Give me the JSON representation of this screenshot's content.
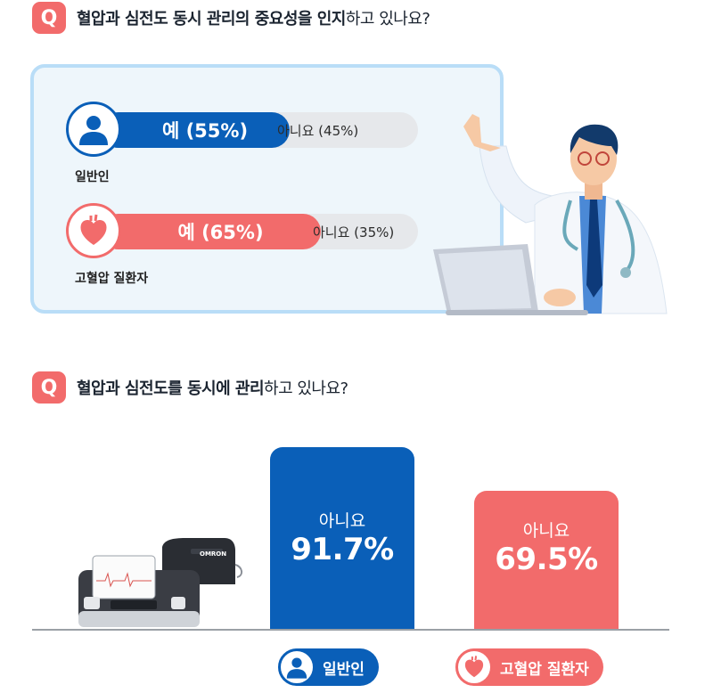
{
  "q1": {
    "badge": "Q",
    "text_bold": "혈압과 심전도 동시 관리의 중요성을 인지",
    "text_normal": "하고 있나요?",
    "groups": [
      {
        "label": "일반인",
        "yes_label": "예 (55%)",
        "no_label": "아니요 (45%)",
        "yes": 55,
        "no": 45,
        "color": "#0a5fb8",
        "icon": "person-icon"
      },
      {
        "label": "고혈압 질환자",
        "yes_label": "예 (65%)",
        "no_label": "아니요 (35%)",
        "yes": 65,
        "no": 35,
        "color": "#f26b6b",
        "icon": "heart-icon"
      }
    ]
  },
  "q2": {
    "badge": "Q",
    "text_bold": "혈압과 심전도를 동시에 관리",
    "text_normal": "하고 있나요?"
  },
  "device": {
    "brand": "OMRON"
  },
  "chart_data": [
    {
      "type": "bar",
      "orientation": "horizontal-stacked",
      "categories": [
        "일반인",
        "고혈압 질환자"
      ],
      "series": [
        {
          "name": "예",
          "values": [
            55,
            65
          ]
        },
        {
          "name": "아니요",
          "values": [
            45,
            35
          ]
        }
      ],
      "unit": "%"
    },
    {
      "type": "bar",
      "categories": [
        "일반인",
        "고혈압 질환자"
      ],
      "value_label": "아니요",
      "values": [
        91.7,
        69.5
      ],
      "value_texts": [
        "91.7%",
        "69.5%"
      ],
      "colors": [
        "#0a5fb8",
        "#f26b6b"
      ],
      "unit": "%"
    }
  ]
}
